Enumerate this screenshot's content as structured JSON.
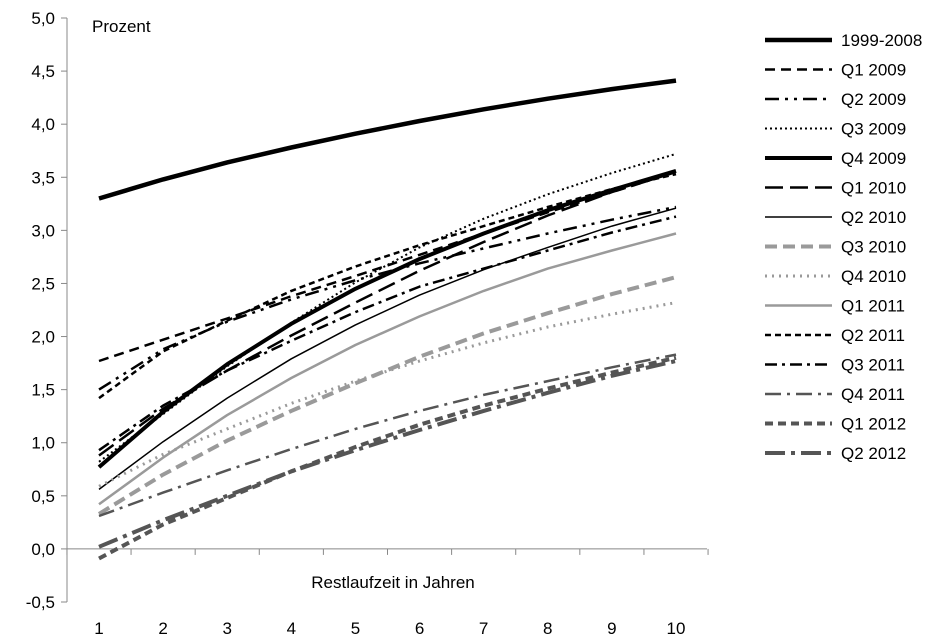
{
  "chart_data": {
    "type": "line",
    "title": "",
    "ylabel": "Prozent",
    "xlabel": "Restlaufzeit in Jahren",
    "x": [
      1,
      2,
      3,
      4,
      5,
      6,
      7,
      8,
      9,
      10
    ],
    "xlim": [
      1,
      10
    ],
    "ylim": [
      -0.5,
      5.0
    ],
    "yticks": [
      "5,0",
      "4,5",
      "4,0",
      "3,5",
      "3,0",
      "2,5",
      "2,0",
      "1,5",
      "1,0",
      "0,5",
      "0,0",
      "-0,5"
    ],
    "xticks": [
      "1",
      "2",
      "3",
      "4",
      "5",
      "6",
      "7",
      "8",
      "9",
      "10"
    ],
    "grid": false,
    "legend_position": "right",
    "series": [
      {
        "name": "1999-2008",
        "color": "#000000",
        "width": 4.5,
        "dash": "none",
        "values": [
          3.3,
          3.48,
          3.64,
          3.78,
          3.91,
          4.03,
          4.14,
          4.24,
          4.33,
          4.41
        ]
      },
      {
        "name": "Q1 2009",
        "color": "#000000",
        "width": 2.5,
        "dash": "10,6",
        "values": [
          1.77,
          1.97,
          2.17,
          2.38,
          2.57,
          2.77,
          2.97,
          3.17,
          3.36,
          3.55
        ]
      },
      {
        "name": "Q2 2009",
        "color": "#000000",
        "width": 2.5,
        "dash": "14,6,3,6,3,6",
        "values": [
          1.5,
          1.88,
          2.14,
          2.35,
          2.53,
          2.69,
          2.83,
          2.97,
          3.1,
          3.22
        ]
      },
      {
        "name": "Q3 2009",
        "color": "#000000",
        "width": 2,
        "dash": "2,3",
        "values": [
          0.82,
          1.27,
          1.72,
          2.13,
          2.51,
          2.84,
          3.11,
          3.34,
          3.54,
          3.72
        ]
      },
      {
        "name": "Q4 2009",
        "color": "#000000",
        "width": 4,
        "dash": "none",
        "values": [
          0.77,
          1.29,
          1.74,
          2.12,
          2.45,
          2.73,
          2.97,
          3.19,
          3.38,
          3.56
        ]
      },
      {
        "name": "Q1 2010",
        "color": "#000000",
        "width": 2.5,
        "dash": "18,7",
        "values": [
          0.88,
          1.32,
          1.68,
          2.01,
          2.32,
          2.62,
          2.89,
          3.14,
          3.36,
          3.55
        ]
      },
      {
        "name": "Q2 2010",
        "color": "#000000",
        "width": 1.5,
        "dash": "none",
        "values": [
          0.56,
          1.01,
          1.42,
          1.79,
          2.11,
          2.39,
          2.63,
          2.84,
          3.04,
          3.21
        ]
      },
      {
        "name": "Q3 2010",
        "color": "#9a9a9a",
        "width": 4,
        "dash": "12,6",
        "values": [
          0.33,
          0.7,
          1.02,
          1.3,
          1.56,
          1.81,
          2.03,
          2.22,
          2.4,
          2.56
        ]
      },
      {
        "name": "Q4 2010",
        "color": "#9a9a9a",
        "width": 3,
        "dash": "2,5",
        "values": [
          0.59,
          0.89,
          1.13,
          1.37,
          1.58,
          1.77,
          1.94,
          2.09,
          2.21,
          2.32
        ]
      },
      {
        "name": "Q1 2011",
        "color": "#9a9a9a",
        "width": 2.5,
        "dash": "none",
        "values": [
          0.42,
          0.86,
          1.26,
          1.61,
          1.92,
          2.19,
          2.43,
          2.64,
          2.81,
          2.97
        ]
      },
      {
        "name": "Q2 2011",
        "color": "#000000",
        "width": 2.5,
        "dash": "6,4",
        "values": [
          1.42,
          1.86,
          2.15,
          2.43,
          2.66,
          2.86,
          3.04,
          3.22,
          3.39,
          3.53
        ]
      },
      {
        "name": "Q3 2011",
        "color": "#000000",
        "width": 2.5,
        "dash": "12,5,3,5",
        "values": [
          0.93,
          1.35,
          1.68,
          1.96,
          2.23,
          2.47,
          2.64,
          2.81,
          2.98,
          3.13
        ]
      },
      {
        "name": "Q4 2011",
        "color": "#555555",
        "width": 2.5,
        "dash": "16,6,3,6",
        "values": [
          0.31,
          0.53,
          0.74,
          0.94,
          1.13,
          1.3,
          1.45,
          1.58,
          1.71,
          1.83
        ]
      },
      {
        "name": "Q1 2012",
        "color": "#555555",
        "width": 4,
        "dash": "8,5",
        "values": [
          -0.09,
          0.23,
          0.48,
          0.73,
          0.96,
          1.17,
          1.35,
          1.51,
          1.66,
          1.8
        ]
      },
      {
        "name": "Q2 2012",
        "color": "#555555",
        "width": 4,
        "dash": "20,6,4,6",
        "values": [
          0.02,
          0.27,
          0.5,
          0.73,
          0.93,
          1.12,
          1.3,
          1.47,
          1.63,
          1.77
        ]
      }
    ]
  }
}
